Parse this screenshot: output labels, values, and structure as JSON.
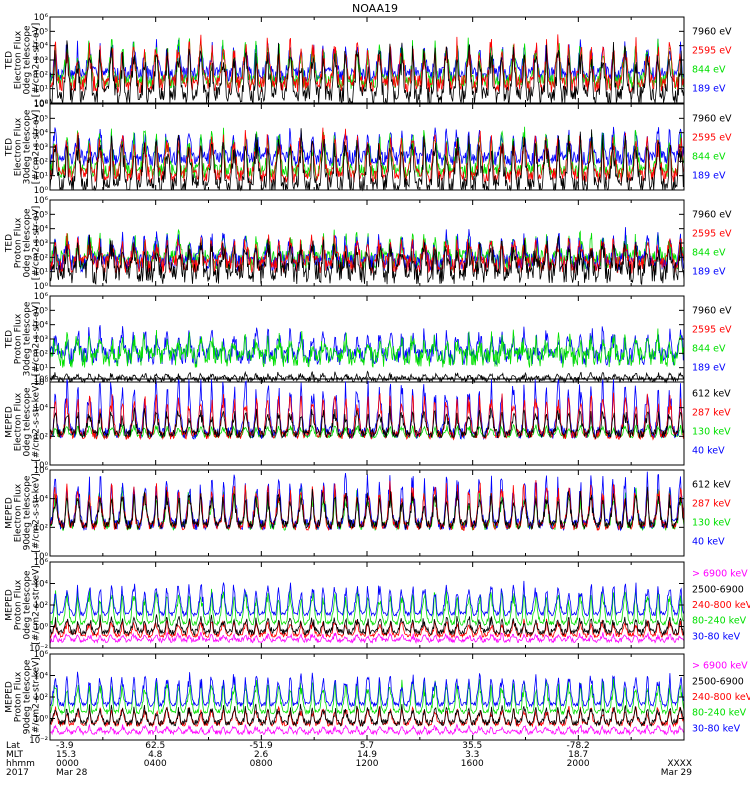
{
  "title": "NOAA19",
  "colors": {
    "black": "#000000",
    "red": "#ff0000",
    "green": "#00e000",
    "blue": "#0000ff",
    "magenta": "#ff00ff"
  },
  "chart_data": [
    {
      "type": "line",
      "ylabel": [
        "TED",
        "Electron Flux",
        "0deg telescope",
        "[#/cm2-s-str-eV]"
      ],
      "ylim": [
        1,
        1000000
      ],
      "yscale": "log",
      "yticks": [
        "10⁰",
        "10¹",
        "10²",
        "10³",
        "10⁴",
        "10⁵",
        "10⁶"
      ],
      "legend": [
        {
          "name": "7960 eV",
          "color": "black"
        },
        {
          "name": "2595 eV",
          "color": "red"
        },
        {
          "name": "844 eV",
          "color": "green"
        },
        {
          "name": "189 eV",
          "color": "blue"
        }
      ],
      "series": [
        {
          "color": "blue",
          "base": 100,
          "amp": 2.2,
          "noise": 0.5
        },
        {
          "color": "green",
          "base": 30,
          "amp": 2.8,
          "noise": 0.5
        },
        {
          "color": "red",
          "base": 20,
          "amp": 3.0,
          "noise": 0.6
        },
        {
          "color": "black",
          "base": 3,
          "amp": 3.5,
          "noise": 0.7
        }
      ]
    },
    {
      "type": "line",
      "ylabel": [
        "TED",
        "Electron Flux",
        "30deg telescope",
        "[#/cm2-s-str-eV]"
      ],
      "ylim": [
        1,
        1000000
      ],
      "yscale": "log",
      "yticks": [
        "10⁰",
        "10¹",
        "10²",
        "10³",
        "10⁴",
        "10⁵",
        "10⁶"
      ],
      "legend": [
        {
          "name": "7960 eV",
          "color": "black"
        },
        {
          "name": "2595 eV",
          "color": "red"
        },
        {
          "name": "844 eV",
          "color": "green"
        },
        {
          "name": "189 eV",
          "color": "blue"
        }
      ],
      "series": [
        {
          "color": "blue",
          "base": 150,
          "amp": 2.0,
          "noise": 0.5
        },
        {
          "color": "green",
          "base": 20,
          "amp": 2.8,
          "noise": 0.5
        },
        {
          "color": "red",
          "base": 10,
          "amp": 3.0,
          "noise": 0.5
        },
        {
          "color": "black",
          "base": 2,
          "amp": 3.5,
          "noise": 0.7
        }
      ]
    },
    {
      "type": "line",
      "ylabel": [
        "TED",
        "Proton Flux",
        "0deg telescope",
        "[#/cm2-s-str-eV]"
      ],
      "ylim": [
        1,
        1000000
      ],
      "yscale": "log",
      "yticks": [
        "10⁰",
        "10¹",
        "10²",
        "10³",
        "10⁴",
        "10⁵",
        "10⁶"
      ],
      "legend": [
        {
          "name": "7960 eV",
          "color": "black"
        },
        {
          "name": "2595 eV",
          "color": "red"
        },
        {
          "name": "844 eV",
          "color": "green"
        },
        {
          "name": "189 eV",
          "color": "blue"
        }
      ],
      "series": [
        {
          "color": "green",
          "base": 60,
          "amp": 1.6,
          "noise": 0.7
        },
        {
          "color": "blue",
          "base": 40,
          "amp": 2.0,
          "noise": 0.6
        },
        {
          "color": "red",
          "base": 30,
          "amp": 1.8,
          "noise": 0.6
        },
        {
          "color": "black",
          "base": 8,
          "amp": 2.0,
          "noise": 0.8
        }
      ]
    },
    {
      "type": "line",
      "ylabel": [
        "TED",
        "Proton Flux",
        "30deg telescope",
        "[#/cm2-s-str-eV]"
      ],
      "ylim": [
        1,
        1000000
      ],
      "yscale": "log",
      "yticks": [
        "10⁰",
        "10¹",
        "10²",
        "10³",
        "10⁴",
        "10⁵",
        "10⁶"
      ],
      "legend": [
        {
          "name": "7960 eV",
          "color": "black"
        },
        {
          "name": "2595 eV",
          "color": "red"
        },
        {
          "name": "844 eV",
          "color": "green"
        },
        {
          "name": "189 eV",
          "color": "blue"
        }
      ],
      "series": [
        {
          "color": "blue",
          "base": 60,
          "amp": 1.8,
          "noise": 0.6
        },
        {
          "color": "green",
          "base": 50,
          "amp": 1.4,
          "noise": 0.7
        },
        {
          "color": "black",
          "base": 1.5,
          "amp": 0.4,
          "noise": 0.2
        }
      ]
    },
    {
      "type": "line",
      "ylabel": [
        "MEPED",
        "Electron Flux",
        "0deg telescope",
        "[#/cm2-s-str-keV]"
      ],
      "ylim": [
        1,
        1000000
      ],
      "yscale": "log",
      "yticks": [
        "10⁰",
        "10²",
        "10⁴",
        "10⁶"
      ],
      "legend": [
        {
          "name": "612 keV",
          "color": "black"
        },
        {
          "name": "287 keV",
          "color": "red"
        },
        {
          "name": "130 keV",
          "color": "green"
        },
        {
          "name": "40 keV",
          "color": "blue"
        }
      ],
      "series": [
        {
          "color": "green",
          "base": 100,
          "amp": 0.8,
          "noise": 0.1
        },
        {
          "color": "blue",
          "base": 160,
          "amp": 3.8,
          "noise": 0.4
        },
        {
          "color": "red",
          "base": 120,
          "amp": 3.0,
          "noise": 0.3
        },
        {
          "color": "black",
          "base": 150,
          "amp": 1.8,
          "noise": 0.3
        }
      ]
    },
    {
      "type": "line",
      "ylabel": [
        "MEPED",
        "Electron Flux",
        "90deg telescope",
        "[#/cm2-s-str-keV]"
      ],
      "ylim": [
        1,
        1000000
      ],
      "yscale": "log",
      "yticks": [
        "10⁰",
        "10²",
        "10⁴",
        "10⁶"
      ],
      "legend": [
        {
          "name": "612 keV",
          "color": "black"
        },
        {
          "name": "287 keV",
          "color": "red"
        },
        {
          "name": "130 keV",
          "color": "green"
        },
        {
          "name": "40 keV",
          "color": "blue"
        }
      ],
      "series": [
        {
          "color": "green",
          "base": 120,
          "amp": 2.6,
          "noise": 0.3
        },
        {
          "color": "blue",
          "base": 150,
          "amp": 3.6,
          "noise": 0.4
        },
        {
          "color": "red",
          "base": 120,
          "amp": 3.0,
          "noise": 0.3
        },
        {
          "color": "black",
          "base": 150,
          "amp": 2.4,
          "noise": 0.3
        }
      ]
    },
    {
      "type": "line",
      "ylabel": [
        "MEPED",
        "Proton Flux",
        "0deg telescope",
        "[#/cm2-s-str-keV]"
      ],
      "ylim": [
        0.01,
        1000000
      ],
      "yscale": "log",
      "yticks": [
        "10⁻²",
        "10⁰",
        "10²",
        "10⁴",
        "10⁶"
      ],
      "legend": [
        {
          "name": "> 6900 keV",
          "color": "magenta"
        },
        {
          "name": "2500-6900",
          "color": "black"
        },
        {
          "name": "240-800 keV",
          "color": "red"
        },
        {
          "name": "80-240 keV",
          "color": "green"
        },
        {
          "name": "30-80 keV",
          "color": "blue"
        }
      ],
      "series": [
        {
          "color": "magenta",
          "base": 0.05,
          "amp": 0.6,
          "noise": 0.2
        },
        {
          "color": "red",
          "base": 0.15,
          "amp": 1.4,
          "noise": 0.2
        },
        {
          "color": "black",
          "base": 0.3,
          "amp": 1.4,
          "noise": 0.3
        },
        {
          "color": "green",
          "base": 2,
          "amp": 3.2,
          "noise": 0.2
        },
        {
          "color": "blue",
          "base": 15,
          "amp": 3.0,
          "noise": 0.2
        }
      ]
    },
    {
      "type": "line",
      "ylabel": [
        "MEPED",
        "Proton Flux",
        "90deg telescope",
        "[#/cm2-s-str-keV]"
      ],
      "ylim": [
        0.01,
        1000000
      ],
      "yscale": "log",
      "yticks": [
        "10⁻²",
        "10⁰",
        "10²",
        "10⁴",
        "10⁶"
      ],
      "legend": [
        {
          "name": "> 6900 keV",
          "color": "magenta"
        },
        {
          "name": "2500-6900",
          "color": "black"
        },
        {
          "name": "240-800 keV",
          "color": "red"
        },
        {
          "name": "80-240 keV",
          "color": "green"
        },
        {
          "name": "30-80 keV",
          "color": "blue"
        }
      ],
      "series": [
        {
          "color": "magenta",
          "base": 0.05,
          "amp": 0.6,
          "noise": 0.2
        },
        {
          "color": "red",
          "base": 0.3,
          "amp": 1.6,
          "noise": 0.2
        },
        {
          "color": "black",
          "base": 0.4,
          "amp": 1.6,
          "noise": 0.3
        },
        {
          "color": "green",
          "base": 4,
          "amp": 3.0,
          "noise": 0.2
        },
        {
          "color": "blue",
          "base": 20,
          "amp": 3.0,
          "noise": 0.2
        }
      ]
    }
  ],
  "x_axis": {
    "row_labels": [
      "Lat",
      "MLT",
      "hhmm",
      "2017"
    ],
    "ticks": [
      {
        "frac": 0.0,
        "lat": "-3.9",
        "mlt": "15.3",
        "hhmm": "0000",
        "date": "Mar 28"
      },
      {
        "frac": 0.166,
        "lat": "62.5",
        "mlt": "4.8",
        "hhmm": "0400",
        "date": ""
      },
      {
        "frac": 0.333,
        "lat": "-51.9",
        "mlt": "2.6",
        "hhmm": "0800",
        "date": ""
      },
      {
        "frac": 0.5,
        "lat": "5.7",
        "mlt": "14.9",
        "hhmm": "1200",
        "date": ""
      },
      {
        "frac": 0.666,
        "lat": "35.5",
        "mlt": "3.3",
        "hhmm": "1600",
        "date": ""
      },
      {
        "frac": 0.833,
        "lat": "-78.2",
        "mlt": "18.7",
        "hhmm": "2000",
        "date": ""
      },
      {
        "frac": 1.0,
        "lat": "",
        "mlt": "",
        "hhmm": "XXXX",
        "date": "Mar 29"
      }
    ]
  },
  "orbits_per_day": 14.2
}
